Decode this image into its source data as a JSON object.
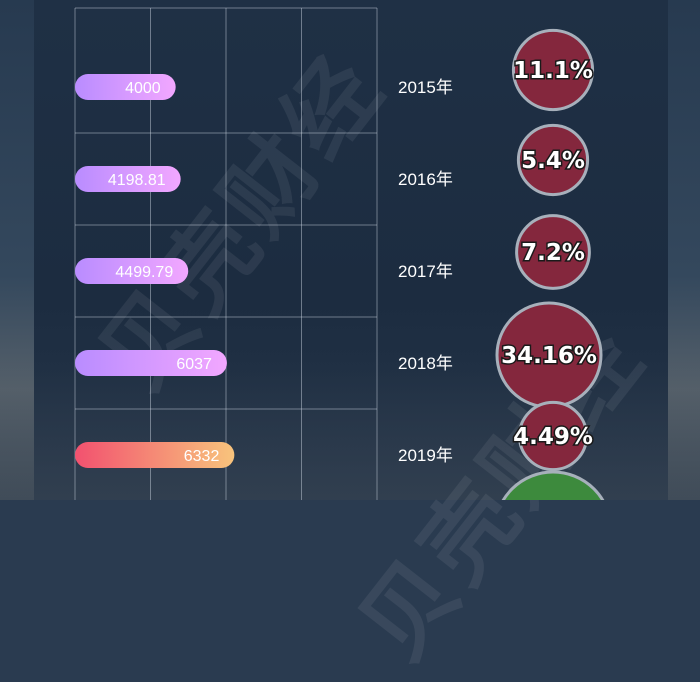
{
  "watermark": "贝壳财经",
  "chart_data": {
    "type": "bar",
    "orientation": "horizontal",
    "categories": [
      "2015年",
      "2016年",
      "2017年",
      "2018年",
      "2019年"
    ],
    "values": [
      4000,
      4198.81,
      4499.79,
      6037,
      6332
    ],
    "value_labels": [
      "4000",
      "4198.81",
      "4499.79",
      "6037",
      "6332"
    ],
    "growth": [
      11.1,
      5.4,
      7.2,
      34.16,
      4.49
    ],
    "growth_labels": [
      "11.1%",
      "5.4%",
      "7.2%",
      "34.16%",
      "4.49%"
    ],
    "xlim": [
      0,
      12000
    ],
    "grid": true,
    "colors": {
      "bar_gradient": [
        "#b98cff",
        "#f2a7ff"
      ],
      "highlight_gradient": [
        "#f2516f",
        "#f8c47c"
      ],
      "bubble_fill": "#84273d",
      "bubble_stroke": "#a7b0bb",
      "bubble_alt_fill": "#3d8a3d"
    }
  }
}
